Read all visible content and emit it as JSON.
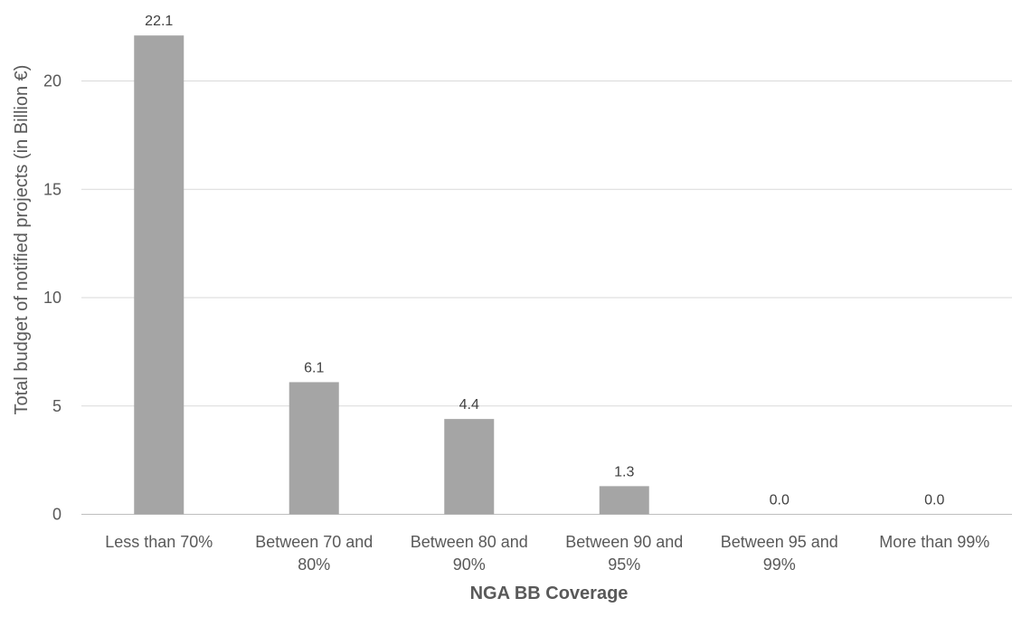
{
  "chart_data": {
    "type": "bar",
    "categories": [
      [
        "Less than 70%"
      ],
      [
        "Between 70 and",
        "80%"
      ],
      [
        "Between 80 and",
        "90%"
      ],
      [
        "Between 90 and",
        "95%"
      ],
      [
        "Between 95 and",
        "99%"
      ],
      [
        "More than 99%"
      ]
    ],
    "values": [
      22.1,
      6.1,
      4.4,
      1.3,
      0.0,
      0.0
    ],
    "value_labels": [
      "22.1",
      "6.1",
      "4.4",
      "1.3",
      "0.0",
      "0.0"
    ],
    "xlabel": "NGA BB Coverage",
    "ylabel": "Total budget of notified projects (in Billion €)",
    "ylim": [
      0,
      22.1
    ],
    "yticks": [
      0,
      5,
      10,
      15,
      20
    ],
    "grid": true,
    "bar_color": "#a5a5a5"
  }
}
